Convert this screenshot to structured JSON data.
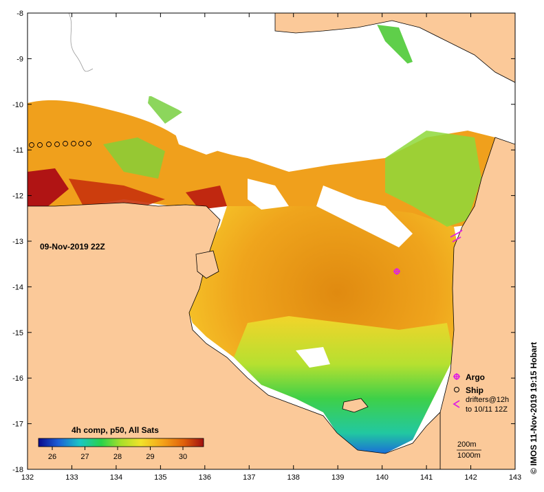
{
  "map": {
    "timestamp": "09-Nov-2019 22Z",
    "credit": "© IMOS 11-Nov-2019 19:15 Hobart",
    "x_ticks": [
      "132",
      "133",
      "134",
      "135",
      "136",
      "137",
      "138",
      "139",
      "140",
      "141",
      "142",
      "143"
    ],
    "y_ticks": [
      "-8",
      "-9",
      "-10",
      "-11",
      "-12",
      "-13",
      "-14",
      "-15",
      "-16",
      "-17",
      "-18"
    ],
    "colorbar": {
      "title": "4h comp, p50, All Sats",
      "ticks": [
        "26",
        "27",
        "28",
        "29",
        "30"
      ]
    },
    "legend": {
      "argo_label": "Argo",
      "ship_label": "Ship",
      "drifters_line1": "drifters@12h",
      "drifters_line2": "to 10/11 12Z",
      "scale_200": "200m",
      "scale_1000": "1000m"
    },
    "colors": {
      "land": "#fbc999",
      "cloud": "#ffffff",
      "argo": "#e020e0",
      "drifter": "#e020e0"
    }
  }
}
